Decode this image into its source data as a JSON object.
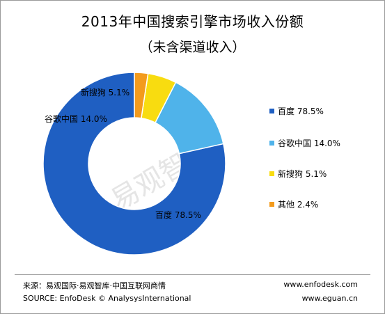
{
  "chart_data": {
    "type": "pie",
    "variant": "donut",
    "title": "2013年中国搜索引擎市场收入份额",
    "subtitle": "（未含渠道收入）",
    "slices": [
      {
        "name": "百度",
        "value": 78.5,
        "label": "百度  78.5%",
        "legend": "百度  78.5%",
        "color": "#1f5fc2"
      },
      {
        "name": "谷歌中国",
        "value": 14.0,
        "label": "谷歌中国  14.0%",
        "legend": "谷歌中国  14.0%",
        "color": "#4fb3ea"
      },
      {
        "name": "新搜狗",
        "value": 5.1,
        "label": "新搜狗  5.1%",
        "legend": "新搜狗  5.1%",
        "color": "#f8dc10"
      },
      {
        "name": "其他",
        "value": 2.4,
        "label": "",
        "legend": "其他  2.4%",
        "color": "#f39b1d"
      }
    ],
    "legend_position": "right",
    "grid": false
  },
  "watermark": "易观智库",
  "footer": {
    "source_cn": "来源：易观国际·易观智库·中国互联网商情",
    "source_en": "SOURCE: EnfoDesk © AnalysysInternational",
    "url1": "www.enfodesk.com",
    "url2": "www.eguan.cn"
  }
}
